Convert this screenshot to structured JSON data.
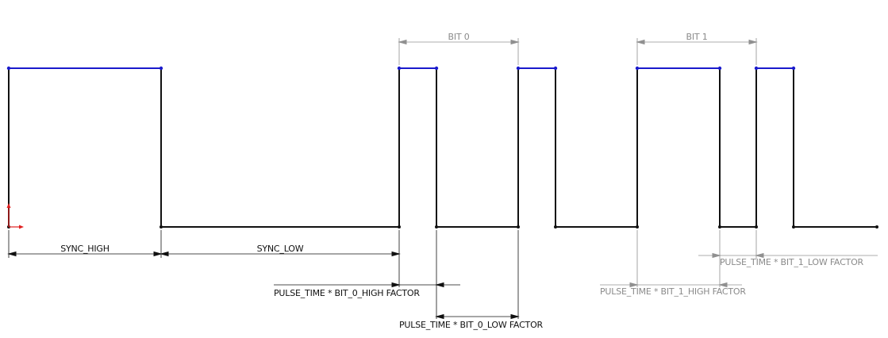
{
  "labels": {
    "sync_high": "SYNC_HIGH",
    "sync_low": "SYNC_LOW",
    "bit0": "BIT 0",
    "bit1": "BIT 1",
    "bit0_high": "PULSE_TIME * BIT_0_HIGH FACTOR",
    "bit0_low": "PULSE_TIME * BIT_0_LOW FACTOR",
    "bit1_high": "PULSE_TIME * BIT_1_HIGH FACTOR",
    "bit1_low": "PULSE_TIME * BIT_1_LOW FACTOR"
  },
  "colors": {
    "signal": "#111111",
    "high_level": "#1a1acc",
    "dimension_dark": "#111111",
    "dimension_gray": "#909090",
    "origin_x_arrow": "#e02020",
    "origin_y_arrow": "#e02020"
  }
}
